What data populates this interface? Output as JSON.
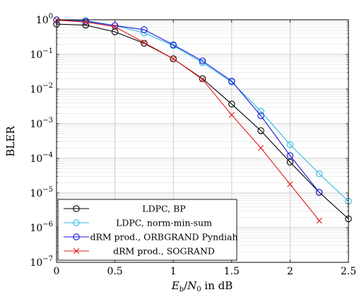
{
  "chart_data": {
    "type": "line",
    "xlabel": "E_b/N_0 in dB",
    "xlabel_parts": {
      "E": "E",
      "b": "b",
      "slash": "/",
      "N": "N",
      "zero": "0",
      "suffix": " in dB"
    },
    "ylabel": "BLER",
    "xlim": [
      0,
      2.5
    ],
    "ylim": [
      1e-07,
      1
    ],
    "y_scale": "log",
    "grid": "major and minor",
    "legend_position": "bottom-left",
    "x_tick_labels": [
      "0",
      "0.5",
      "1",
      "1.5",
      "2",
      "2.5"
    ],
    "y_tick_labels": [
      {
        "base": "10",
        "exp": "0"
      },
      {
        "base": "10",
        "exp": "−1"
      },
      {
        "base": "10",
        "exp": "−2"
      },
      {
        "base": "10",
        "exp": "−3"
      },
      {
        "base": "10",
        "exp": "−4"
      },
      {
        "base": "10",
        "exp": "−5"
      },
      {
        "base": "10",
        "exp": "−6"
      },
      {
        "base": "10",
        "exp": "−7"
      }
    ],
    "series": [
      {
        "name": "LDPC, BP",
        "color": "#000000",
        "marker": "circle",
        "x": [
          0,
          0.25,
          0.5,
          0.75,
          1.0,
          1.25,
          1.5,
          1.75,
          2.0,
          2.25,
          2.5
        ],
        "y": [
          0.75,
          0.7,
          0.45,
          0.21,
          0.075,
          0.02,
          0.0037,
          0.00063,
          7.8e-05,
          1.05e-05,
          1.8e-06
        ]
      },
      {
        "name": "LDPC, norm-min-sum",
        "color": "#33bbdd",
        "marker": "circle",
        "x": [
          0,
          0.25,
          0.5,
          0.75,
          1.0,
          1.25,
          1.5,
          1.75,
          2.0,
          2.25,
          2.5
        ],
        "y": [
          0.98,
          0.95,
          0.68,
          0.42,
          0.18,
          0.058,
          0.016,
          0.0023,
          0.00025,
          3.6e-05,
          5.8e-06
        ]
      },
      {
        "name": "dRM prod., ORBGRAND Pyndiah",
        "color": "#1a1adc",
        "marker": "circle",
        "x": [
          0,
          0.25,
          0.5,
          0.75,
          1.0,
          1.25,
          1.5,
          1.75,
          2.0,
          2.25
        ],
        "y": [
          1.0,
          0.9,
          0.68,
          0.52,
          0.19,
          0.065,
          0.017,
          0.0017,
          0.00012,
          1.05e-05
        ]
      },
      {
        "name": "dRM prod., SOGRAND",
        "color": "#e02020",
        "marker": "cross",
        "x": [
          0,
          0.25,
          0.5,
          0.75,
          1.0,
          1.25,
          1.5,
          1.75,
          2.0,
          2.25
        ],
        "y": [
          0.98,
          0.86,
          0.63,
          0.22,
          0.075,
          0.019,
          0.0018,
          0.0002,
          1.8e-05,
          1.6e-06
        ]
      }
    ]
  }
}
